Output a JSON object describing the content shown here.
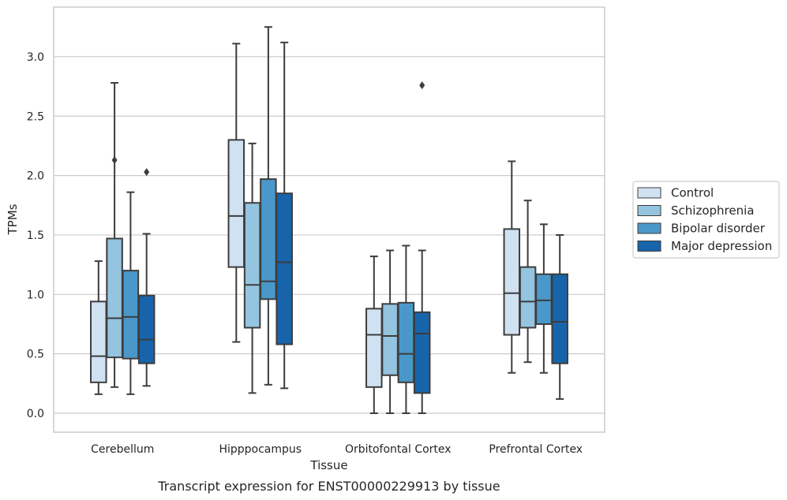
{
  "chart_data": {
    "type": "box",
    "title": "",
    "caption": "Transcript expression for ENST00000229913 by tissue",
    "xlabel": "Tissue",
    "ylabel": "TPMs",
    "ylim": [
      -0.16,
      3.43
    ],
    "yticks": [
      0.0,
      0.5,
      1.0,
      1.5,
      2.0,
      2.5,
      3.0
    ],
    "ytick_labels": [
      "0.0",
      "0.5",
      "1.0",
      "1.5",
      "2.0",
      "2.5",
      "3.0"
    ],
    "grid": "horizontal",
    "legend_position": "right",
    "categories": [
      "Cerebellum",
      "Hipppocampus",
      "Orbitofontal Cortex",
      "Prefrontal Cortex"
    ],
    "series": [
      {
        "name": "Control",
        "color": "#d0e1f2",
        "boxes": [
          {
            "whislo": 0.16,
            "q1": 0.26,
            "med": 0.48,
            "q3": 0.94,
            "whishi": 1.28,
            "fliers": []
          },
          {
            "whislo": 0.6,
            "q1": 1.23,
            "med": 1.66,
            "q3": 2.3,
            "whishi": 3.11,
            "fliers": []
          },
          {
            "whislo": 0.0,
            "q1": 0.22,
            "med": 0.66,
            "q3": 0.88,
            "whishi": 1.32,
            "fliers": []
          },
          {
            "whislo": 0.34,
            "q1": 0.66,
            "med": 1.01,
            "q3": 1.55,
            "whishi": 2.12,
            "fliers": []
          }
        ]
      },
      {
        "name": "Schizophrenia",
        "color": "#94c4df",
        "boxes": [
          {
            "whislo": 0.22,
            "q1": 0.47,
            "med": 0.8,
            "q3": 1.47,
            "whishi": 2.78,
            "fliers": [
              2.13
            ]
          },
          {
            "whislo": 0.17,
            "q1": 0.72,
            "med": 1.08,
            "q3": 1.77,
            "whishi": 2.27,
            "fliers": []
          },
          {
            "whislo": 0.0,
            "q1": 0.32,
            "med": 0.65,
            "q3": 0.92,
            "whishi": 1.37,
            "fliers": []
          },
          {
            "whislo": 0.43,
            "q1": 0.72,
            "med": 0.94,
            "q3": 1.23,
            "whishi": 1.79,
            "fliers": []
          }
        ]
      },
      {
        "name": "Bipolar disorder",
        "color": "#4a98c9",
        "boxes": [
          {
            "whislo": 0.16,
            "q1": 0.46,
            "med": 0.81,
            "q3": 1.2,
            "whishi": 1.86,
            "fliers": []
          },
          {
            "whislo": 0.24,
            "q1": 0.96,
            "med": 1.11,
            "q3": 1.97,
            "whishi": 3.25,
            "fliers": []
          },
          {
            "whislo": 0.0,
            "q1": 0.26,
            "med": 0.5,
            "q3": 0.93,
            "whishi": 1.41,
            "fliers": []
          },
          {
            "whislo": 0.34,
            "q1": 0.75,
            "med": 0.95,
            "q3": 1.17,
            "whishi": 1.59,
            "fliers": []
          }
        ]
      },
      {
        "name": "Major depression",
        "color": "#1764ab",
        "boxes": [
          {
            "whislo": 0.23,
            "q1": 0.42,
            "med": 0.62,
            "q3": 0.99,
            "whishi": 1.51,
            "fliers": [
              2.03
            ]
          },
          {
            "whislo": 0.21,
            "q1": 0.58,
            "med": 1.27,
            "q3": 1.85,
            "whishi": 3.12,
            "fliers": []
          },
          {
            "whislo": 0.0,
            "q1": 0.17,
            "med": 0.67,
            "q3": 0.85,
            "whishi": 1.37,
            "fliers": [
              2.76
            ]
          },
          {
            "whislo": 0.12,
            "q1": 0.42,
            "med": 0.77,
            "q3": 1.17,
            "whishi": 1.5,
            "fliers": []
          }
        ]
      }
    ]
  },
  "colors": {
    "grid": "#cccccc",
    "frame": "#cccccc",
    "box_edge": "#3d3d3d",
    "text": "#262626"
  }
}
